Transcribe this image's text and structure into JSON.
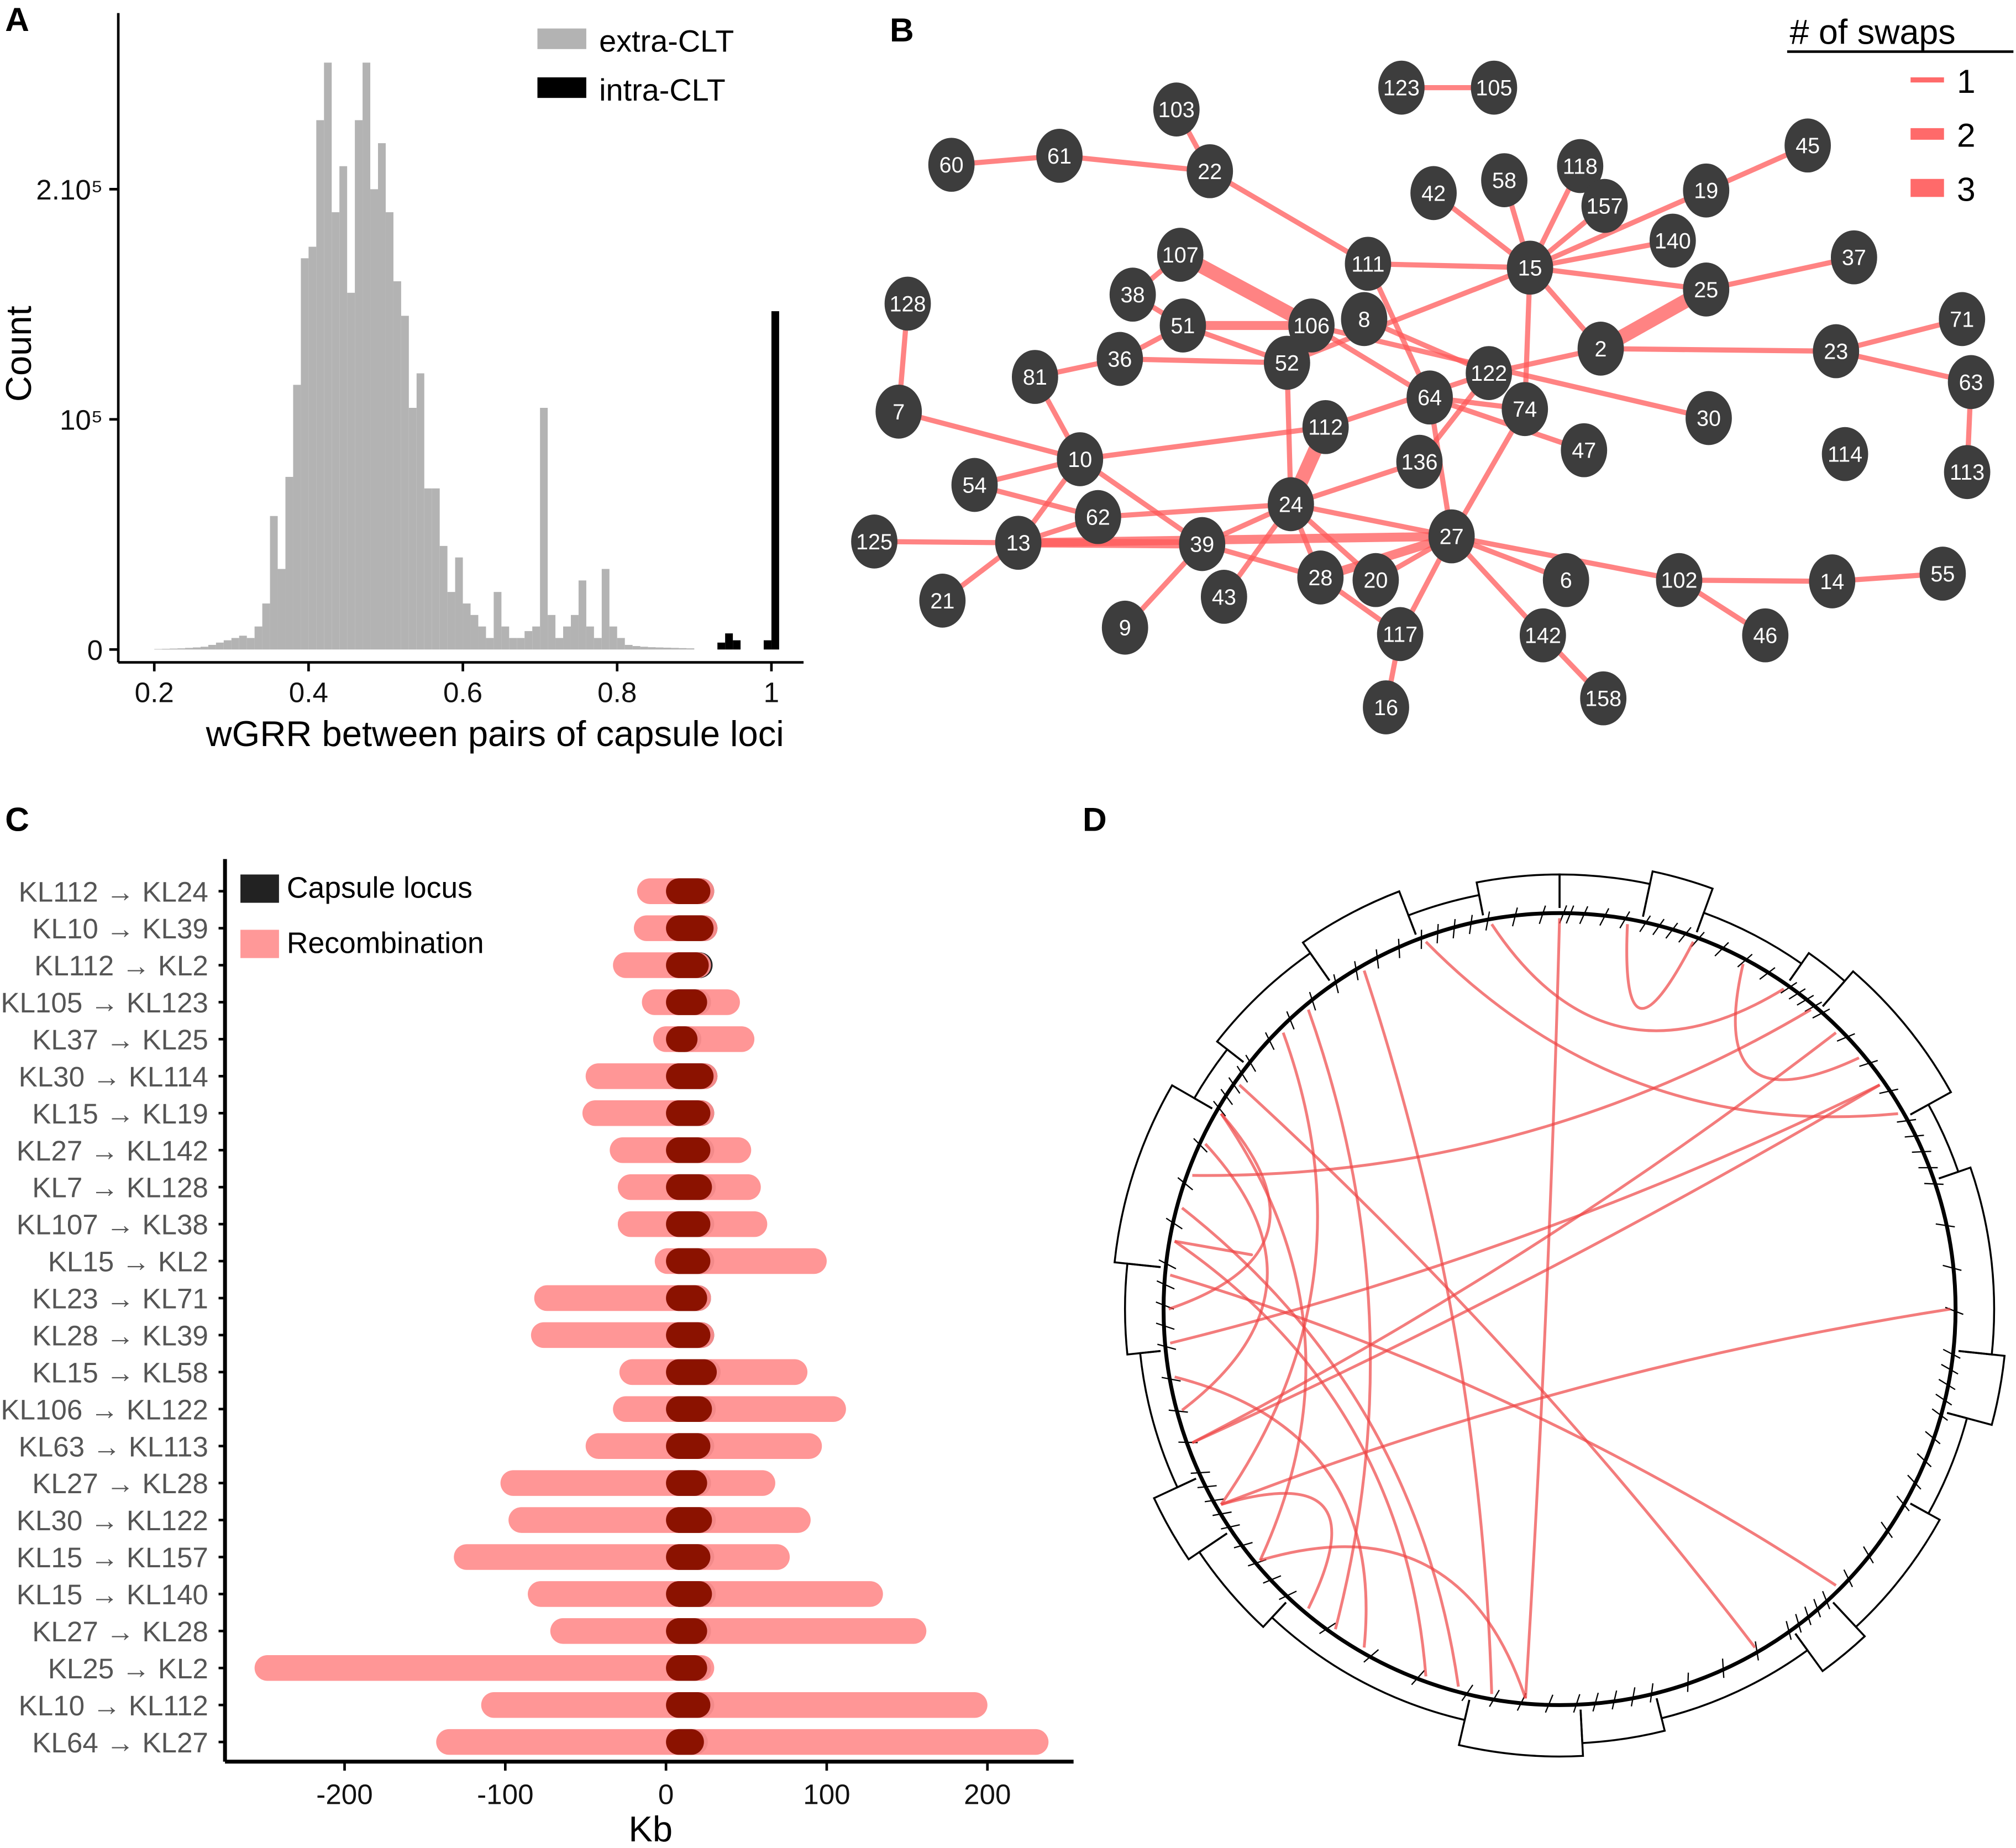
{
  "panels": {
    "a": "A",
    "b": "B",
    "c": "C",
    "d": "D"
  },
  "chart_data": [
    {
      "type": "bar",
      "title": "",
      "xlabel": "wGRR between pairs of capsule loci",
      "ylabel": "Count",
      "xlim": [
        0.2,
        1.0
      ],
      "ylim": [
        0,
        260000
      ],
      "xticks": [
        "0.2",
        "0.4",
        "0.6",
        "0.8",
        "1"
      ],
      "yticks": [
        {
          "label": "0",
          "value": 0
        },
        {
          "label": "10⁵",
          "value": 100000
        },
        {
          "label": "2.10⁵",
          "value": 200000
        }
      ],
      "legend": [
        "extra-CLT",
        "intra-CLT"
      ],
      "legend_position": "top-right",
      "bin_width": 0.01,
      "series": [
        {
          "name": "extra-CLT",
          "color": "#b3b3b3",
          "x_start": 0.2,
          "values": [
            200,
            300,
            400,
            500,
            700,
            900,
            1200,
            2000,
            3000,
            4000,
            5000,
            6000,
            5000,
            10000,
            20000,
            58000,
            35000,
            75000,
            115000,
            170000,
            175000,
            230000,
            255000,
            190000,
            210000,
            155000,
            230000,
            255000,
            200000,
            220000,
            190000,
            160000,
            145000,
            105000,
            120000,
            70000,
            70000,
            45000,
            25000,
            40000,
            20000,
            15000,
            10000,
            5000,
            25000,
            10000,
            5000,
            5000,
            8000,
            10000,
            105000,
            15000,
            5000,
            10000,
            15000,
            30000,
            10000,
            5000,
            35000,
            10000,
            5000,
            2000,
            1500,
            1200,
            1000,
            900,
            800,
            700,
            600,
            500
          ]
        },
        {
          "name": "intra-CLT",
          "color": "#000000",
          "x_start": 0.93,
          "values": [
            3000,
            7000,
            4000,
            0,
            0,
            0,
            4000,
            147000
          ]
        }
      ]
    },
    {
      "type": "network",
      "title": "",
      "legend_title": "# of swaps",
      "legend": [
        "1",
        "2",
        "3"
      ],
      "legend_position": "top-right",
      "nodes": [
        "123",
        "105",
        "103",
        "60",
        "61",
        "22",
        "42",
        "58",
        "118",
        "157",
        "19",
        "45",
        "140",
        "111",
        "15",
        "37",
        "25",
        "107",
        "38",
        "128",
        "51",
        "106",
        "8",
        "36",
        "52",
        "2",
        "23",
        "71",
        "63",
        "81",
        "122",
        "64",
        "74",
        "7",
        "112",
        "30",
        "114",
        "113",
        "47",
        "136",
        "10",
        "54",
        "62",
        "24",
        "27",
        "125",
        "13",
        "39",
        "28",
        "20",
        "6",
        "102",
        "14",
        "55",
        "21",
        "43",
        "9",
        "117",
        "142",
        "46",
        "158",
        "16"
      ],
      "edges": [
        [
          "123",
          "105",
          1
        ],
        [
          "60",
          "61",
          1
        ],
        [
          "61",
          "22",
          1
        ],
        [
          "103",
          "22",
          1
        ],
        [
          "22",
          "111",
          1
        ],
        [
          "111",
          "15",
          1
        ],
        [
          "111",
          "64",
          1
        ],
        [
          "42",
          "15",
          1
        ],
        [
          "58",
          "15",
          1
        ],
        [
          "118",
          "15",
          1
        ],
        [
          "157",
          "15",
          1
        ],
        [
          "19",
          "15",
          1
        ],
        [
          "19",
          "45",
          1
        ],
        [
          "140",
          "15",
          1
        ],
        [
          "15",
          "25",
          1
        ],
        [
          "15",
          "2",
          1
        ],
        [
          "15",
          "74",
          1
        ],
        [
          "52",
          "15",
          1
        ],
        [
          "25",
          "37",
          1
        ],
        [
          "25",
          "2",
          3
        ],
        [
          "2",
          "23",
          1
        ],
        [
          "2",
          "122",
          1
        ],
        [
          "23",
          "71",
          1
        ],
        [
          "23",
          "63",
          1
        ],
        [
          "63",
          "113",
          1
        ],
        [
          "107",
          "106",
          3
        ],
        [
          "107",
          "38",
          1
        ],
        [
          "38",
          "51",
          1
        ],
        [
          "51",
          "106",
          2
        ],
        [
          "51",
          "52",
          1
        ],
        [
          "51",
          "36",
          1
        ],
        [
          "36",
          "52",
          1
        ],
        [
          "36",
          "81",
          1
        ],
        [
          "81",
          "10",
          1
        ],
        [
          "106",
          "64",
          1
        ],
        [
          "106",
          "30",
          1
        ],
        [
          "8",
          "122",
          1
        ],
        [
          "122",
          "136",
          1
        ],
        [
          "64",
          "74",
          1
        ],
        [
          "64",
          "47",
          1
        ],
        [
          "64",
          "27",
          1
        ],
        [
          "10",
          "112",
          1
        ],
        [
          "112",
          "122",
          1
        ],
        [
          "112",
          "24",
          3
        ],
        [
          "52",
          "24",
          1
        ],
        [
          "7",
          "128",
          1
        ],
        [
          "7",
          "10",
          1
        ],
        [
          "10",
          "54",
          1
        ],
        [
          "10",
          "13",
          1
        ],
        [
          "10",
          "39",
          1
        ],
        [
          "54",
          "62",
          1
        ],
        [
          "62",
          "24",
          1
        ],
        [
          "62",
          "13",
          1
        ],
        [
          "24",
          "136",
          1
        ],
        [
          "24",
          "39",
          1
        ],
        [
          "24",
          "28",
          1
        ],
        [
          "24",
          "20",
          1
        ],
        [
          "24",
          "27",
          1
        ],
        [
          "24",
          "43",
          1
        ],
        [
          "125",
          "13",
          1
        ],
        [
          "13",
          "39",
          2
        ],
        [
          "13",
          "21",
          1
        ],
        [
          "13",
          "27",
          2
        ],
        [
          "39",
          "9",
          1
        ],
        [
          "39",
          "28",
          1
        ],
        [
          "27",
          "28",
          2
        ],
        [
          "27",
          "20",
          1
        ],
        [
          "27",
          "117",
          1
        ],
        [
          "27",
          "6",
          1
        ],
        [
          "27",
          "142",
          1
        ],
        [
          "27",
          "102",
          1
        ],
        [
          "74",
          "27",
          1
        ],
        [
          "28",
          "117",
          1
        ],
        [
          "117",
          "16",
          1
        ],
        [
          "142",
          "158",
          1
        ],
        [
          "102",
          "14",
          1
        ],
        [
          "102",
          "46",
          1
        ],
        [
          "14",
          "55",
          1
        ]
      ]
    },
    {
      "type": "bar",
      "orientation": "horizontal",
      "xlabel": "Kb",
      "xlim": [
        -275,
        255
      ],
      "xticks": [
        "-200",
        "-100",
        "0",
        "100",
        "200"
      ],
      "legend": [
        "Capsule locus",
        "Recombination"
      ],
      "legend_position": "top-left",
      "rows": [
        {
          "label": "KL112 → KL24",
          "rec": [
            -18,
            30
          ],
          "cap": [
            0,
            30
          ]
        },
        {
          "label": "KL10 → KL39",
          "rec": [
            -20,
            32
          ],
          "cap": [
            0,
            32
          ]
        },
        {
          "label": "KL112 → KL2",
          "rec": [
            -33,
            28
          ],
          "cap": [
            0,
            29
          ]
        },
        {
          "label": "KL105 → KL123",
          "rec": [
            -15,
            46
          ],
          "cap": [
            0,
            28
          ]
        },
        {
          "label": "KL37 → KL25",
          "rec": [
            -8,
            55
          ],
          "cap": [
            0,
            22
          ]
        },
        {
          "label": "KL30 → KL114",
          "rec": [
            -50,
            32
          ],
          "cap": [
            0,
            32
          ]
        },
        {
          "label": "KL15 → KL19",
          "rec": [
            -52,
            30
          ],
          "cap": [
            0,
            30
          ]
        },
        {
          "label": "KL27 → KL142",
          "rec": [
            -35,
            53
          ],
          "cap": [
            0,
            30
          ]
        },
        {
          "label": "KL7 → KL128",
          "rec": [
            -30,
            59
          ],
          "cap": [
            0,
            31
          ]
        },
        {
          "label": "KL107 → KL38",
          "rec": [
            -30,
            63
          ],
          "cap": [
            0,
            30
          ]
        },
        {
          "label": "KL15 → KL2",
          "rec": [
            -7,
            100
          ],
          "cap": [
            0,
            30
          ]
        },
        {
          "label": "KL23 → KL71",
          "rec": [
            -82,
            28
          ],
          "cap": [
            0,
            28
          ]
        },
        {
          "label": "KL28 → KL39",
          "rec": [
            -84,
            30
          ],
          "cap": [
            0,
            30
          ]
        },
        {
          "label": "KL15 → KL58",
          "rec": [
            -29,
            88
          ],
          "cap": [
            0,
            34
          ]
        },
        {
          "label": "KL106 → KL122",
          "rec": [
            -33,
            112
          ],
          "cap": [
            0,
            31
          ]
        },
        {
          "label": "KL63 → KL113",
          "rec": [
            -50,
            97
          ],
          "cap": [
            0,
            30
          ]
        },
        {
          "label": "KL27 → KL28",
          "rec": [
            -103,
            68
          ],
          "cap": [
            0,
            28
          ]
        },
        {
          "label": "KL30 → KL122",
          "rec": [
            -98,
            90
          ],
          "cap": [
            0,
            31
          ]
        },
        {
          "label": "KL15 → KL157",
          "rec": [
            -132,
            77
          ],
          "cap": [
            0,
            30
          ]
        },
        {
          "label": "KL15 → KL140",
          "rec": [
            -86,
            135
          ],
          "cap": [
            0,
            31
          ]
        },
        {
          "label": "KL27 → KL28",
          "rec": [
            -72,
            162
          ],
          "cap": [
            0,
            28
          ]
        },
        {
          "label": "KL25 → KL2",
          "rec": [
            -256,
            30
          ],
          "cap": [
            0,
            28
          ]
        },
        {
          "label": "KL10 → KL112",
          "rec": [
            -115,
            200
          ],
          "cap": [
            0,
            30
          ]
        },
        {
          "label": "KL64 → KL27",
          "rec": [
            -143,
            238
          ],
          "cap": [
            0,
            26
          ]
        }
      ],
      "colors": {
        "capsule": "#222222",
        "recombination": "#ff9090",
        "overlap": "#8b1200"
      }
    },
    {
      "type": "circular-tree",
      "title": "",
      "chord_color": "#ee4444"
    }
  ]
}
